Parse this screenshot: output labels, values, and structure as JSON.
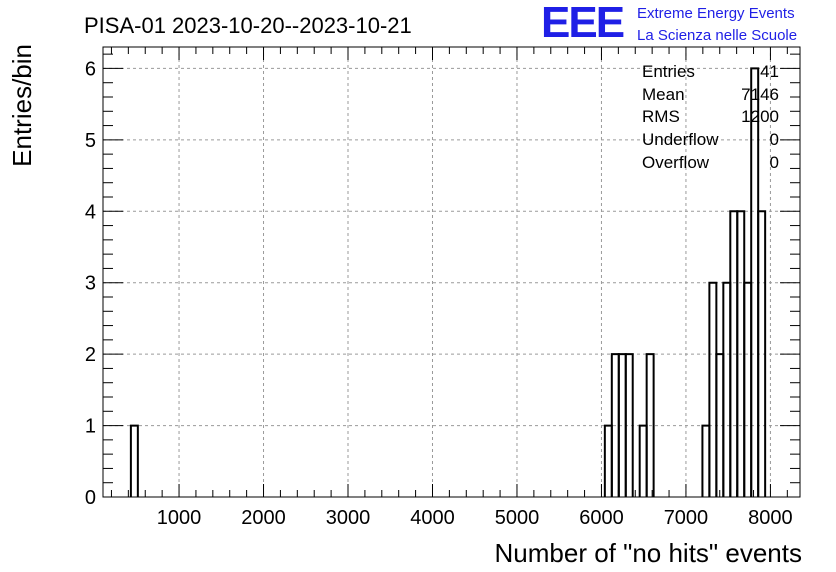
{
  "header": {
    "title": "PISA-01 2023-10-20--2023-10-21",
    "logo": {
      "mark": "EEE",
      "line1": "Extreme Energy Events",
      "line2": "La Scienza nelle Scuole",
      "color": "#1f1fe6"
    }
  },
  "stats_box": {
    "rows": [
      {
        "label": "Entries",
        "value": "41"
      },
      {
        "label": "Mean",
        "value": "7146"
      },
      {
        "label": "RMS",
        "value": "1200"
      },
      {
        "label": "Underflow",
        "value": "0"
      },
      {
        "label": "Overflow",
        "value": "0"
      }
    ]
  },
  "chart_data": {
    "type": "bar",
    "style": "step-histogram",
    "xlabel": "Number of \"no hits\" events",
    "ylabel": "Entries/bin",
    "xlim": [
      100,
      8350
    ],
    "ylim": [
      0,
      6.3
    ],
    "xticks": [
      1000,
      2000,
      3000,
      4000,
      5000,
      6000,
      7000,
      8000
    ],
    "yticks": [
      0,
      1,
      2,
      3,
      4,
      5,
      6
    ],
    "grid": true,
    "bin_width": 82.5,
    "bins": [
      {
        "x_low": 430,
        "x_high": 512.5,
        "count": 1
      },
      {
        "x_low": 6040,
        "x_high": 6122.5,
        "count": 1
      },
      {
        "x_low": 6122.5,
        "x_high": 6205,
        "count": 2
      },
      {
        "x_low": 6205,
        "x_high": 6287.5,
        "count": 2
      },
      {
        "x_low": 6287.5,
        "x_high": 6370,
        "count": 2
      },
      {
        "x_low": 6452.5,
        "x_high": 6535,
        "count": 1
      },
      {
        "x_low": 6535,
        "x_high": 6617.5,
        "count": 2
      },
      {
        "x_low": 7195,
        "x_high": 7277.5,
        "count": 1
      },
      {
        "x_low": 7277.5,
        "x_high": 7360,
        "count": 3
      },
      {
        "x_low": 7360,
        "x_high": 7442.5,
        "count": 2
      },
      {
        "x_low": 7442.5,
        "x_high": 7525,
        "count": 3
      },
      {
        "x_low": 7525,
        "x_high": 7607.5,
        "count": 4
      },
      {
        "x_low": 7607.5,
        "x_high": 7690,
        "count": 4
      },
      {
        "x_low": 7690,
        "x_high": 7772.5,
        "count": 3
      },
      {
        "x_low": 7772.5,
        "x_high": 7855,
        "count": 6
      },
      {
        "x_low": 7855,
        "x_high": 7937.5,
        "count": 4
      }
    ],
    "line_color": "#000000",
    "grid_color": "#9a9a9a"
  }
}
